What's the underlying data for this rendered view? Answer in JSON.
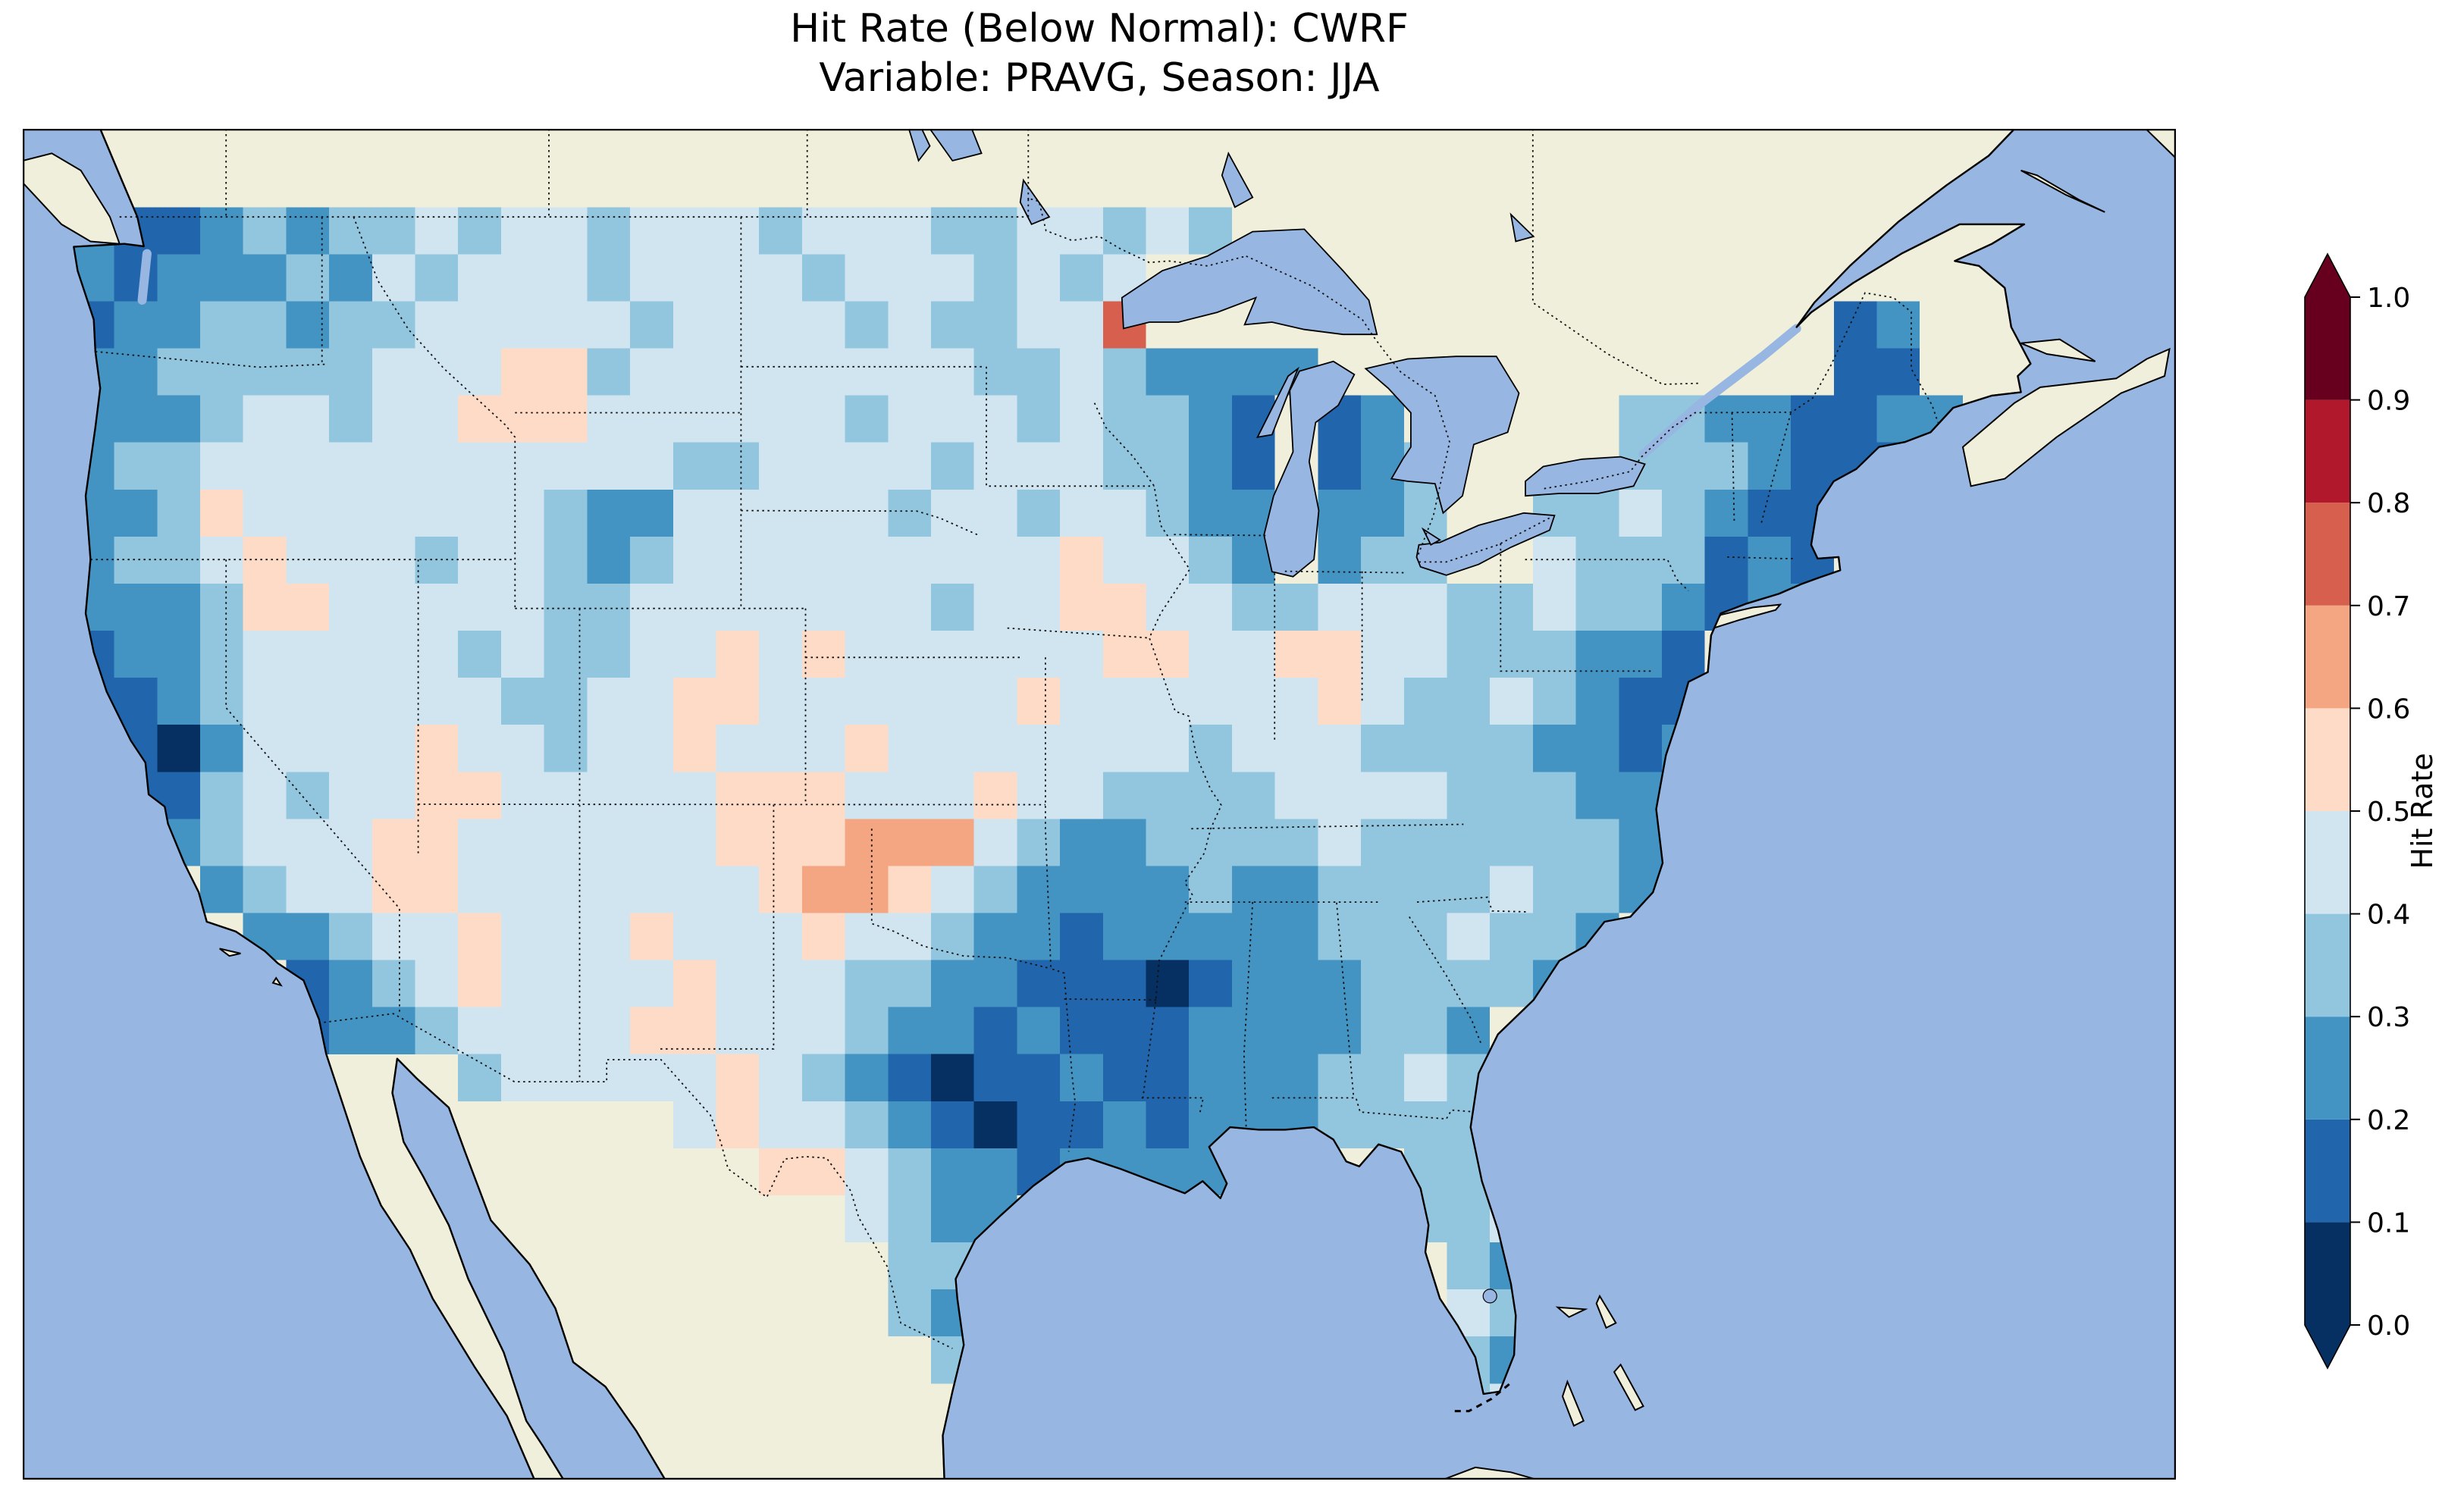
{
  "figure": {
    "title_line1": "Hit Rate (Below Normal): CWRF",
    "title_line2": "Variable: PRAVG, Season: JJA"
  },
  "chart_data": {
    "type": "heatmap",
    "title": "Hit Rate (Below Normal): CWRF",
    "subtitle": "Variable: PRAVG, Season: JJA",
    "metric": "Hit Rate",
    "forecast_category": "Below Normal",
    "model": "CWRF",
    "variable": "PRAVG",
    "season": "JJA",
    "region": "Contiguous United States",
    "projection_extent": {
      "lon_min": -126.3,
      "lon_max": -59.6,
      "lat_min": 23.2,
      "lat_max": 50.8
    },
    "colorbar": {
      "label": "Hit Rate",
      "ticks": [
        "0.0",
        "0.1",
        "0.2",
        "0.3",
        "0.4",
        "0.5",
        "0.6",
        "0.7",
        "0.8",
        "0.9",
        "1.0"
      ],
      "vmin": 0.0,
      "vmax": 1.0,
      "extend": "both",
      "colormap": "RdBu_r",
      "bin_colors": [
        "#053061",
        "#2166ac",
        "#4393c3",
        "#92c5de",
        "#d1e5f0",
        "#fddbc7",
        "#f4a582",
        "#d6604d",
        "#b2182b",
        "#67001f"
      ]
    },
    "map_colors": {
      "ocean": "#97b6e1",
      "land": "#efefdb",
      "coastline": "#000000"
    },
    "grid": {
      "description": "Gridded hit-rate field over CONUS, rows north to south. '.' = no data (outside US); digit d = hit-rate bucket centered at d*0.1+0.05.",
      "lon_west": -124.8,
      "dlon": 1.3318,
      "ncols": 44,
      "lat_north": 49.2,
      "dlat": 0.9615,
      "nrows": 26,
      "rows": [
        "211232334344344434443344343.................",
        "2122232434443444434443434...................",
        "1223323344444344443433447................12.",
        "22333334445534444444433432222............11.",
        "2223443445554444443444343321.12.....33221122",
        "2334444444444433444434443321.123....3332111.",
        "2235444444432244444344344322.223..3343211...",
        "2334544434432344444444454432.233..4333121...",
        "22235544444334444444344554433444334332122...",
        "12234444434334454544444455445544333221......",
        "11234444443344554444445444444543343211......",
        "21024444544344544454444444344433332212......",
        "2113434455444445554445443333444433322.......",
        "3223444554444445556664322333343333332.......",
        "...2344554444444566543222232233334332.......",
        "....22344544454445443221222223334332........",
        ".....123454444544433221110122233332.........",
        ".....1223444455444322121112222332...........",
        ".........344444543210112112223343...........",
        "..............4544321011212223333...........",
        "................55432212222....33...........",
        "..................4322.........334..........",
        "...................33...........32..........",
        "...................32...........43..........",
        "....................3...........32..........",
        "................................34.........."
      ]
    }
  }
}
